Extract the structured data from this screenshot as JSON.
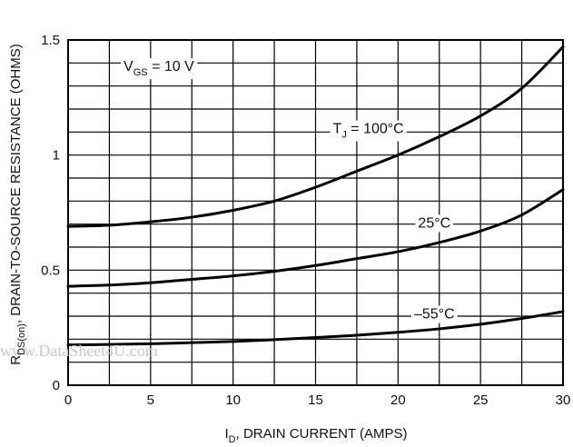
{
  "chart_data": {
    "type": "line",
    "xlabel": {
      "main": "I",
      "sub": "D",
      "rest": ", DRAIN CURRENT (AMPS)"
    },
    "ylabel": {
      "main": "R",
      "sub": "DS(on)",
      "rest": ", DRAIN-TO-SOURCE RESISTANCE (OHMS)"
    },
    "xlim": [
      0,
      30
    ],
    "ylim": [
      0,
      1.5
    ],
    "xticks": [
      0,
      5,
      10,
      15,
      20,
      25,
      30
    ],
    "yticks": [
      0,
      0.5,
      1,
      1.5
    ],
    "ytick_labels": [
      "0",
      "0.5",
      "1",
      "1.5"
    ],
    "grid": true,
    "condition": {
      "main": "V",
      "sub": "GS",
      "rest": " = 10 V"
    },
    "series": [
      {
        "name": "T_J = 100°C",
        "label_main": "T",
        "label_sub": "J",
        "label_rest": " = 100°C",
        "x": [
          0,
          2.5,
          5,
          7.5,
          10,
          12.5,
          15,
          17.5,
          20,
          22.5,
          25,
          27.5,
          30
        ],
        "y": [
          0.69,
          0.695,
          0.71,
          0.73,
          0.76,
          0.8,
          0.86,
          0.93,
          1.0,
          1.08,
          1.17,
          1.29,
          1.47
        ]
      },
      {
        "name": "25°C",
        "label_main": "25°C",
        "x": [
          0,
          2.5,
          5,
          7.5,
          10,
          12.5,
          15,
          17.5,
          20,
          22.5,
          25,
          27.5,
          30
        ],
        "y": [
          0.43,
          0.435,
          0.445,
          0.46,
          0.475,
          0.495,
          0.52,
          0.55,
          0.58,
          0.62,
          0.67,
          0.74,
          0.85
        ]
      },
      {
        "name": "-55°C",
        "label_main": "–55°C",
        "x": [
          0,
          2.5,
          5,
          7.5,
          10,
          12.5,
          15,
          17.5,
          20,
          22.5,
          25,
          27.5,
          30
        ],
        "y": [
          0.175,
          0.177,
          0.18,
          0.185,
          0.19,
          0.198,
          0.207,
          0.217,
          0.23,
          0.245,
          0.265,
          0.29,
          0.32
        ]
      }
    ],
    "watermark": "www.DataSheet4U.com"
  }
}
